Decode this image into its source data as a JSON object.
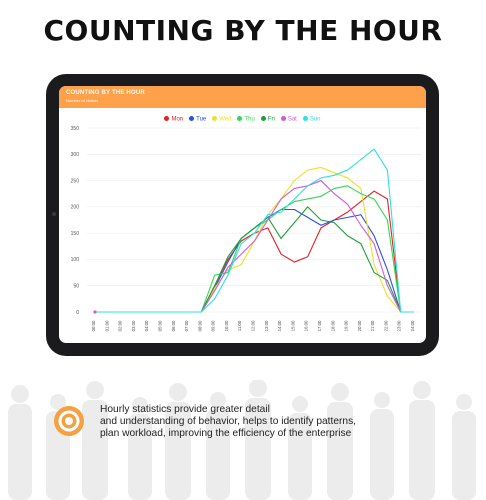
{
  "page": {
    "title": "COUNTING BY THE HOUR"
  },
  "chart_panel": {
    "title": "COUNTING BY THE HOUR",
    "subtitle": "Number of visitors"
  },
  "colors": {
    "header": "#ffa04a",
    "accent_icon": "#f5a043"
  },
  "chart_data": {
    "type": "line",
    "ylim": [
      0,
      350
    ],
    "yticks": [
      0,
      50,
      100,
      150,
      200,
      250,
      300,
      350
    ],
    "x": [
      "00:00",
      "01:00",
      "02:00",
      "03:00",
      "04:00",
      "05:00",
      "06:00",
      "07:00",
      "08:00",
      "09:00",
      "10:00",
      "11:00",
      "12:00",
      "13:00",
      "14:00",
      "15:00",
      "16:00",
      "17:00",
      "18:00",
      "19:00",
      "20:00",
      "21:00",
      "22:00",
      "23:00",
      "24:00"
    ],
    "legend_position": "top-center",
    "grid": true,
    "series": [
      {
        "name": "Mon",
        "color": "#e52121",
        "values": [
          0,
          0,
          0,
          0,
          0,
          0,
          0,
          0,
          0,
          50,
          100,
          135,
          150,
          160,
          110,
          95,
          105,
          160,
          175,
          190,
          210,
          230,
          215,
          0,
          0
        ]
      },
      {
        "name": "Tue",
        "color": "#2d4ee6",
        "values": [
          0,
          0,
          0,
          0,
          0,
          0,
          0,
          0,
          0,
          45,
          95,
          140,
          160,
          180,
          195,
          195,
          180,
          165,
          175,
          180,
          185,
          145,
          80,
          0,
          0
        ]
      },
      {
        "name": "Wed",
        "color": "#ede22a",
        "values": [
          0,
          0,
          0,
          0,
          0,
          0,
          0,
          0,
          0,
          45,
          80,
          90,
          135,
          185,
          215,
          250,
          270,
          275,
          265,
          255,
          235,
          90,
          30,
          0,
          0
        ]
      },
      {
        "name": "Thu",
        "color": "#3ad453",
        "values": [
          0,
          0,
          0,
          0,
          0,
          0,
          0,
          0,
          0,
          70,
          75,
          140,
          160,
          175,
          195,
          210,
          215,
          220,
          235,
          240,
          225,
          215,
          175,
          0,
          0
        ]
      },
      {
        "name": "Fri",
        "color": "#1e9e3a",
        "values": [
          0,
          0,
          0,
          0,
          0,
          0,
          0,
          0,
          0,
          50,
          105,
          140,
          160,
          180,
          140,
          170,
          200,
          175,
          170,
          145,
          130,
          75,
          60,
          0,
          0
        ]
      },
      {
        "name": "Sat",
        "color": "#d05ad8",
        "values": [
          0,
          0,
          0,
          0,
          0,
          0,
          0,
          0,
          0,
          40,
          85,
          110,
          135,
          175,
          215,
          235,
          240,
          250,
          225,
          205,
          165,
          130,
          50,
          0,
          0
        ]
      },
      {
        "name": "Sun",
        "color": "#2ee0e3",
        "values": [
          0,
          0,
          0,
          0,
          0,
          0,
          0,
          0,
          0,
          25,
          70,
          130,
          150,
          185,
          190,
          215,
          240,
          255,
          260,
          270,
          290,
          310,
          270,
          0,
          0
        ]
      }
    ]
  },
  "footer": {
    "lines": [
      "Hourly statistics provide greater detail",
      "and understanding of behavior, helps to identify patterns,",
      "plan workload, improving the efficiency of the enterprise"
    ]
  }
}
